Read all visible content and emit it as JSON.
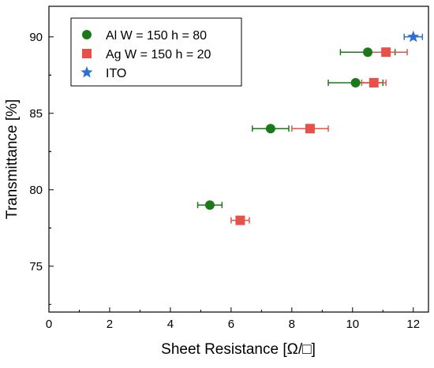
{
  "chart_data": {
    "type": "scatter",
    "title": "",
    "xlabel": "Sheet Resistance [Ω/□]",
    "ylabel": "Transmittance [%]",
    "xlim": [
      0,
      12.5
    ],
    "ylim": [
      72,
      92
    ],
    "x_ticks": [
      "0",
      "2",
      "4",
      "6",
      "8",
      "10",
      "12"
    ],
    "y_ticks": [
      "75",
      "80",
      "85",
      "90"
    ],
    "grid": false,
    "legend_position": "top-left",
    "series": [
      {
        "name": "Al W = 150 h = 80",
        "marker": "circle",
        "color": "#1a7a1a",
        "points": [
          {
            "x": 5.3,
            "y": 79,
            "xerr": 0.4
          },
          {
            "x": 7.3,
            "y": 84,
            "xerr": 0.6
          },
          {
            "x": 10.1,
            "y": 87,
            "xerr": 0.9
          },
          {
            "x": 10.5,
            "y": 89,
            "xerr": 0.9
          }
        ]
      },
      {
        "name": "Ag W = 150 h = 20",
        "marker": "square",
        "color": "#e8504a",
        "points": [
          {
            "x": 6.3,
            "y": 78,
            "xerr": 0.3
          },
          {
            "x": 8.6,
            "y": 84,
            "xerr": 0.6
          },
          {
            "x": 10.7,
            "y": 87,
            "xerr": 0.4
          },
          {
            "x": 11.1,
            "y": 89,
            "xerr": 0.7
          }
        ]
      },
      {
        "name": "ITO",
        "marker": "star",
        "color": "#2d6fd6",
        "points": [
          {
            "x": 12.0,
            "y": 90,
            "xerr": 0.3
          }
        ]
      }
    ]
  }
}
